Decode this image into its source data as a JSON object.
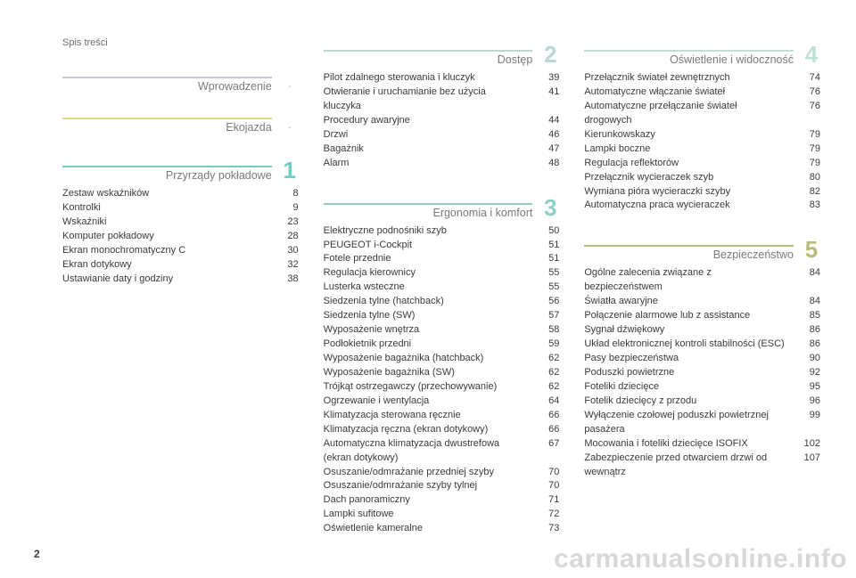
{
  "breadcrumb": "Spis treści",
  "page_number": "2",
  "watermark": "carmanualsonline.info",
  "columns": [
    {
      "sections": [
        {
          "title": "Wprowadzenie",
          "rule_color": "#c9c3d6",
          "num": ".",
          "num_type": "dot",
          "num_color": "#bdbdbd",
          "items": []
        },
        {
          "title": "Ekojazda",
          "rule_color": "#d9dc8e",
          "num": ".",
          "num_type": "dot",
          "num_color": "#bdbdbd",
          "items": []
        },
        {
          "title": "Przyrządy pokładowe",
          "rule_color": "#6fcdc3",
          "num": "1",
          "num_type": "digit",
          "num_color": "#6fcdc3",
          "items": [
            {
              "label": "Zestaw wskaźników",
              "page": "8"
            },
            {
              "label": "Kontrolki",
              "page": "9"
            },
            {
              "label": "Wskaźniki",
              "page": "23"
            },
            {
              "label": "Komputer pokładowy",
              "page": "28"
            },
            {
              "label": "Ekran monochromatyczny C",
              "page": "30"
            },
            {
              "label": "Ekran dotykowy",
              "page": "32"
            },
            {
              "label": "Ustawianie daty i godziny",
              "page": "38"
            }
          ]
        }
      ]
    },
    {
      "sections": [
        {
          "title": "Dostęp",
          "rule_color": "#b7d8d3",
          "num": "2",
          "num_type": "digit",
          "num_color": "#b7d8d3",
          "items": [
            {
              "label": "Pilot zdalnego sterowania i kluczyk",
              "page": "39"
            },
            {
              "label": "Otwieranie i uruchamianie bez użycia kluczyka",
              "page": "41"
            },
            {
              "label": "Procedury awaryjne",
              "page": "44"
            },
            {
              "label": "Drzwi",
              "page": "46"
            },
            {
              "label": "Bagażnik",
              "page": "47"
            },
            {
              "label": "Alarm",
              "page": "48"
            }
          ]
        },
        {
          "title": "Ergonomia i komfort",
          "rule_color": "#8fcfc6",
          "num": "3",
          "num_type": "digit",
          "num_color": "#8fcfc6",
          "items": [
            {
              "label": "Elektryczne podnośniki szyb",
              "page": "50"
            },
            {
              "label": "PEUGEOT i-Cockpit",
              "page": "51"
            },
            {
              "label": "Fotele przednie",
              "page": "51"
            },
            {
              "label": "Regulacja kierownicy",
              "page": "55"
            },
            {
              "label": "Lusterka wsteczne",
              "page": "55"
            },
            {
              "label": "Siedzenia tylne (hatchback)",
              "page": "56"
            },
            {
              "label": "Siedzenia tylne (SW)",
              "page": "57"
            },
            {
              "label": "Wyposażenie wnętrza",
              "page": "58"
            },
            {
              "label": "Podłokietnik przedni",
              "page": "59"
            },
            {
              "label": "Wyposażenie bagażnika (hatchback)",
              "page": "62"
            },
            {
              "label": "Wyposażenie bagażnika (SW)",
              "page": "62"
            },
            {
              "label": "Trójkąt ostrzegawczy (przechowywanie)",
              "page": "62"
            },
            {
              "label": "Ogrzewanie i wentylacja",
              "page": "64"
            },
            {
              "label": "Klimatyzacja sterowana ręcznie",
              "page": "66"
            },
            {
              "label": "Klimatyzacja ręczna (ekran dotykowy)",
              "page": "66"
            },
            {
              "label": "Automatyczna klimatyzacja dwustrefowa (ekran dotykowy)",
              "page": "67"
            },
            {
              "label": "Osuszanie/odmrażanie przedniej szyby",
              "page": "70"
            },
            {
              "label": "Osuszanie/odmrażanie szyby tylnej",
              "page": "70"
            },
            {
              "label": "Dach panoramiczny",
              "page": "71"
            },
            {
              "label": "Lampki sufitowe",
              "page": "72"
            },
            {
              "label": "Oświetlenie kameralne",
              "page": "73"
            }
          ]
        }
      ]
    },
    {
      "sections": [
        {
          "title": "Oświetlenie i widoczność",
          "rule_color": "#bfe0d8",
          "num": "4",
          "num_type": "digit",
          "num_color": "#bfe0d8",
          "items": [
            {
              "label": "Przełącznik świateł zewnętrznych",
              "page": "74"
            },
            {
              "label": "Automatyczne włączanie świateł",
              "page": "76"
            },
            {
              "label": "Automatyczne przełączanie świateł drogowych",
              "page": "76"
            },
            {
              "label": "Kierunkowskazy",
              "page": "79"
            },
            {
              "label": "Lampki boczne",
              "page": "79"
            },
            {
              "label": "Regulacja reflektorów",
              "page": "79"
            },
            {
              "label": "Przełącznik wycieraczek szyb",
              "page": "80"
            },
            {
              "label": "Wymiana pióra wycieraczki szyby",
              "page": "82"
            },
            {
              "label": "Automatyczna praca wycieraczek",
              "page": "83"
            }
          ]
        },
        {
          "title": "Bezpieczeństwo",
          "rule_color": "#b7bc7a",
          "num": "5",
          "num_type": "digit",
          "num_color": "#b7bc7a",
          "items": [
            {
              "label": "Ogólne zalecenia związane z bezpieczeństwem",
              "page": "84"
            },
            {
              "label": "Światła awaryjne",
              "page": "84"
            },
            {
              "label": "Połączenie alarmowe lub z assistance",
              "page": "85"
            },
            {
              "label": "Sygnał dźwiękowy",
              "page": "86"
            },
            {
              "label": "Układ elektronicznej kontroli stabilności (ESC)",
              "page": "86"
            },
            {
              "label": "Pasy bezpieczeństwa",
              "page": "90"
            },
            {
              "label": "Poduszki powietrzne",
              "page": "92"
            },
            {
              "label": "Foteliki dziecięce",
              "page": "95"
            },
            {
              "label": "Fotelik dziecięcy z przodu",
              "page": "96"
            },
            {
              "label": "Wyłączenie czołowej poduszki powietrznej pasażera",
              "page": "99"
            },
            {
              "label": "Mocowania i foteliki dziecięce ISOFIX",
              "page": "102"
            },
            {
              "label": "Zabezpieczenie przed otwarciem drzwi od wewnątrz",
              "page": "107"
            }
          ]
        }
      ]
    }
  ]
}
